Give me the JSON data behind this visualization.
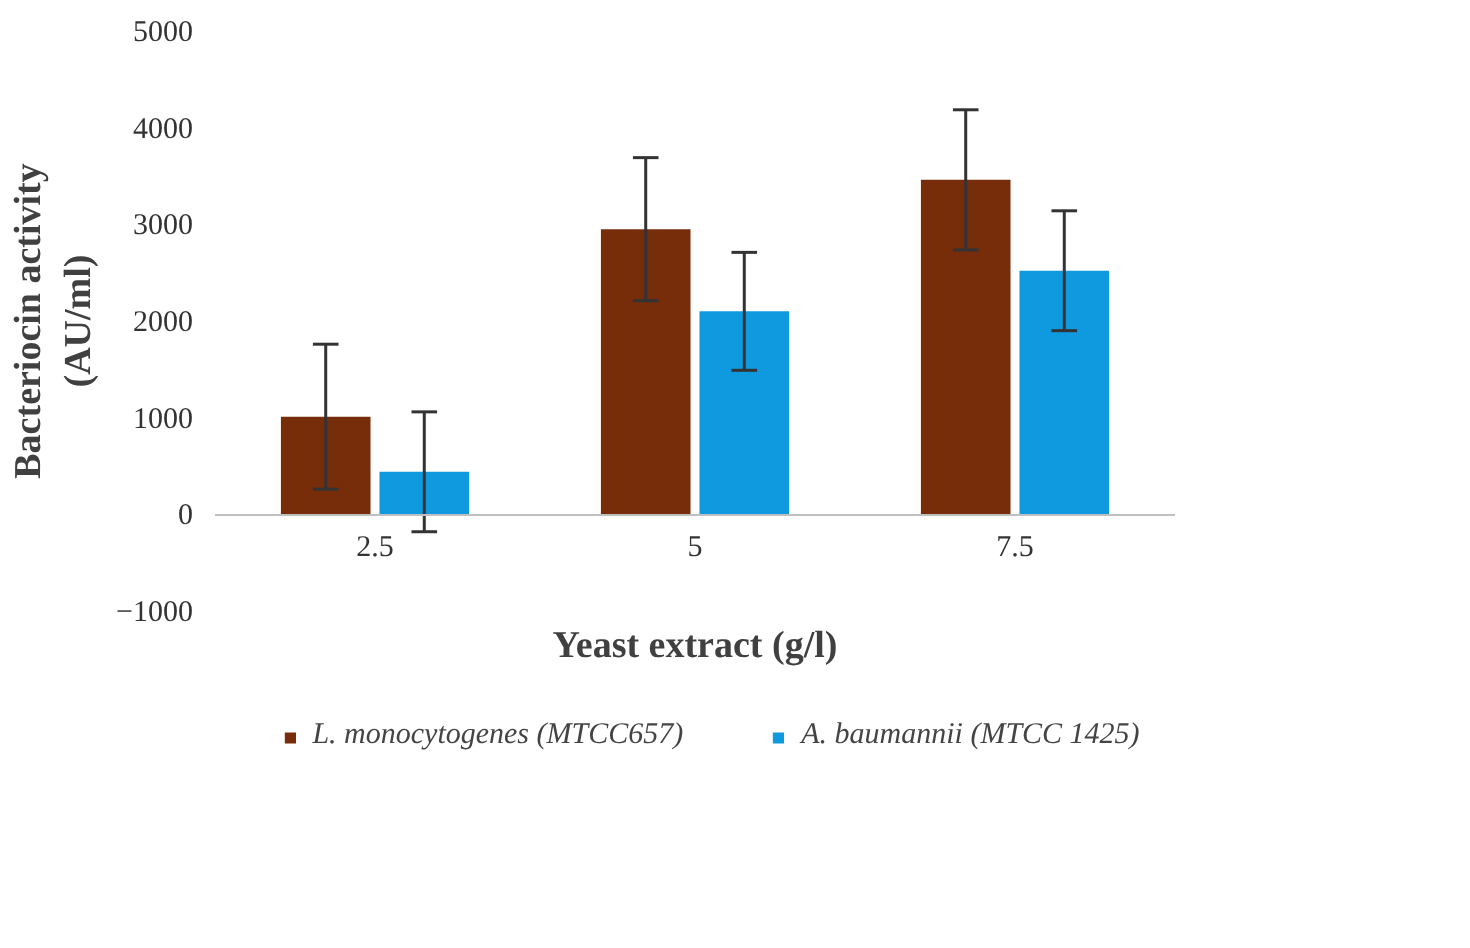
{
  "chart_data": {
    "type": "bar",
    "xlabel": "Yeast extract (g/l)",
    "ylabel": "Bacteriocin activity\n(AU/ml)",
    "categories": [
      "2.5",
      "5",
      "7.5"
    ],
    "series": [
      {
        "name": "L. monocytogenes (MTCC657)",
        "color": "#772c0a",
        "values": [
          1010,
          2950,
          3460
        ],
        "errors": [
          750,
          740,
          725
        ]
      },
      {
        "name": "A. baumannii (MTCC 1425)",
        "color": "#0f9ae0",
        "values": [
          440,
          2100,
          2520
        ],
        "errors": [
          620,
          610,
          620
        ]
      }
    ],
    "ylim": [
      -1000,
      5000
    ],
    "yticks": [
      -1000,
      0,
      1000,
      2000,
      3000,
      4000,
      5000
    ],
    "grid": false,
    "legend": "bottom"
  }
}
